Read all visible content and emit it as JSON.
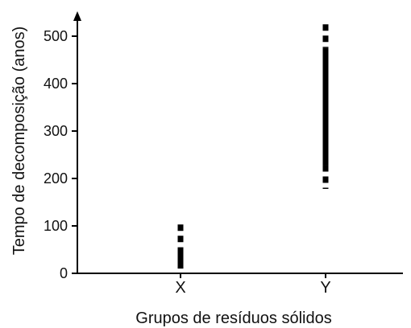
{
  "chart_data": {
    "type": "range",
    "xlabel": "Grupos de resíduos sólidos",
    "ylabel": "Tempo de decomposição (anos)",
    "ylim": [
      0,
      530
    ],
    "yticks": [
      0,
      100,
      200,
      300,
      400,
      500
    ],
    "ytick_labels": [
      "0",
      "100",
      "200",
      "300",
      "400",
      "500"
    ],
    "grid": false,
    "categories": [
      "X",
      "Y"
    ],
    "series": [
      {
        "category": "X",
        "solid_range": [
          10,
          55
        ],
        "dashed_range": [
          55,
          103
        ]
      },
      {
        "category": "Y",
        "solid_range": [
          228,
          475
        ],
        "dashed_range_low": [
          178,
          228
        ],
        "dashed_range_high": [
          475,
          525
        ]
      }
    ],
    "colors": {
      "marks": "#000000",
      "axis": "#000000"
    }
  }
}
